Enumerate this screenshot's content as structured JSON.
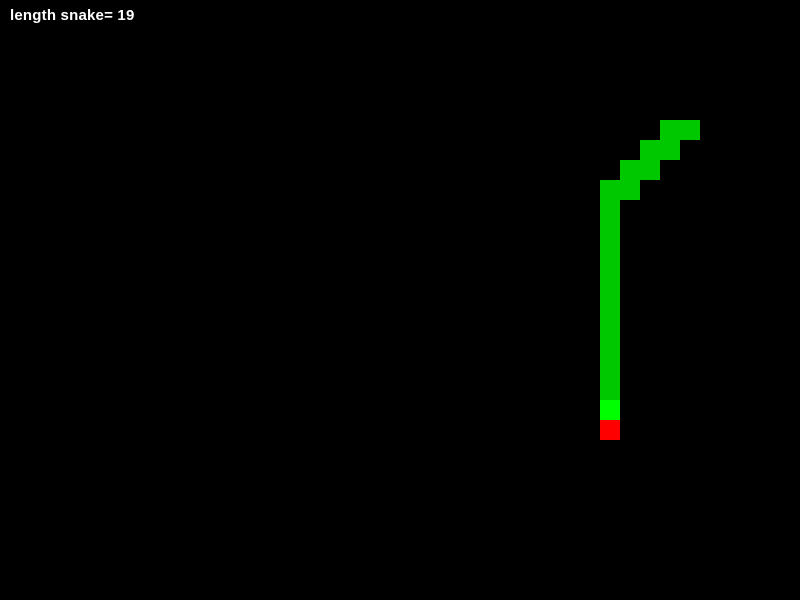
{
  "hud": {
    "score_label": "length snake= 19"
  },
  "colors": {
    "background": "#000000",
    "snake_body": "#00c800",
    "snake_head": "#00ff00",
    "food": "#ff0000",
    "text": "#ffffff"
  },
  "grid": {
    "columns": 40,
    "rows": 30
  },
  "snake": {
    "length": 19,
    "head": {
      "col": 30,
      "row": 20
    },
    "body": [
      {
        "col": 30,
        "row": 19
      },
      {
        "col": 30,
        "row": 18
      },
      {
        "col": 30,
        "row": 17
      },
      {
        "col": 30,
        "row": 16
      },
      {
        "col": 30,
        "row": 15
      },
      {
        "col": 30,
        "row": 14
      },
      {
        "col": 30,
        "row": 13
      },
      {
        "col": 30,
        "row": 12
      },
      {
        "col": 30,
        "row": 11
      },
      {
        "col": 30,
        "row": 10
      },
      {
        "col": 30,
        "row": 9
      },
      {
        "col": 31,
        "row": 9
      },
      {
        "col": 31,
        "row": 8
      },
      {
        "col": 32,
        "row": 8
      },
      {
        "col": 32,
        "row": 7
      },
      {
        "col": 33,
        "row": 7
      },
      {
        "col": 33,
        "row": 6
      },
      {
        "col": 34,
        "row": 6
      }
    ]
  },
  "food": {
    "col": 30,
    "row": 21
  }
}
